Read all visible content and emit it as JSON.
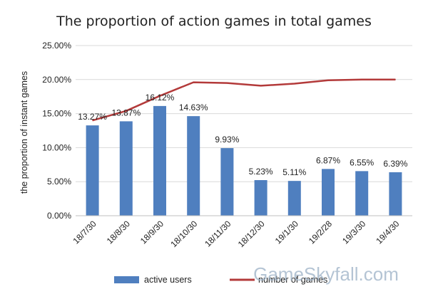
{
  "chart_data": {
    "type": "bar+line",
    "title": "The proportion of action games in total games",
    "xlabel": "",
    "ylabel": "the proportion of instant games",
    "ylim": [
      0,
      25
    ],
    "yticks": [
      0,
      5,
      10,
      15,
      20,
      25
    ],
    "ytick_labels": [
      "0.00%",
      "5.00%",
      "10.00%",
      "15.00%",
      "20.00%",
      "25.00%"
    ],
    "grid": true,
    "legend_position": "bottom",
    "categories": [
      "18/7/30",
      "18/8/30",
      "18/9/30",
      "18/10/30",
      "18/11/30",
      "18/12/30",
      "19/1/30",
      "19/2/28",
      "19/3/30",
      "19/4/30"
    ],
    "series": [
      {
        "name": "active users",
        "type": "bar",
        "values": [
          13.27,
          13.87,
          16.12,
          14.63,
          9.93,
          5.23,
          5.11,
          6.87,
          6.55,
          6.39
        ],
        "labels": [
          "13.27%",
          "13.87%",
          "16.12%",
          "14.63%",
          "9.93%",
          "5.23%",
          "5.11%",
          "6.87%",
          "6.55%",
          "6.39%"
        ]
      },
      {
        "name": "number of games",
        "type": "line",
        "values": [
          14.0,
          15.4,
          17.6,
          19.6,
          19.5,
          19.1,
          19.4,
          19.9,
          20.0,
          20.0
        ]
      }
    ],
    "colors": {
      "bar": "#4f7fbf",
      "line": "#b33a3a",
      "grid": "#d9d9d9",
      "text": "#222222"
    }
  },
  "watermark": "GameSkyfall.com"
}
